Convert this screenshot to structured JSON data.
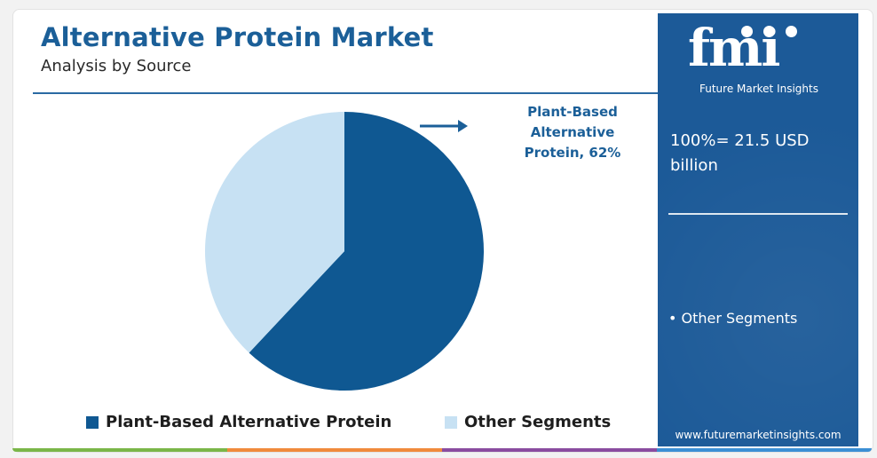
{
  "header": {
    "title": "Alternative Protein Market",
    "subtitle": "Analysis by Source"
  },
  "callout": {
    "line1": "Plant-Based",
    "line2": "Alternative",
    "line3": "Protein, 62%"
  },
  "panel": {
    "logo_text": "fmi",
    "logo_subtitle": "Future Market Insights",
    "total_line1": "100%= 21.5 USD",
    "total_line2": "billion",
    "item": "• Other Segments",
    "website": "www.futuremarketinsights.com"
  },
  "colors": {
    "primary": "#0f5892",
    "secondary": "#c7e1f3",
    "panel": "#1c5a98",
    "title": "#1b5f98",
    "bar_green": "#7ab648",
    "bar_orange": "#f08a3c",
    "bar_purple": "#8a4ca0",
    "bar_blue": "#3b8fd4"
  },
  "chart_data": {
    "type": "pie",
    "title": "Alternative Protein Market",
    "subtitle": "Analysis by Source",
    "total": "100%= 21.5 USD billion",
    "slices": [
      {
        "label": "Plant-Based Alternative Protein",
        "value": 62,
        "color": "#0f5892"
      },
      {
        "label": "Other Segments",
        "value": 38,
        "color": "#c7e1f3"
      }
    ],
    "legend": "bottom"
  }
}
